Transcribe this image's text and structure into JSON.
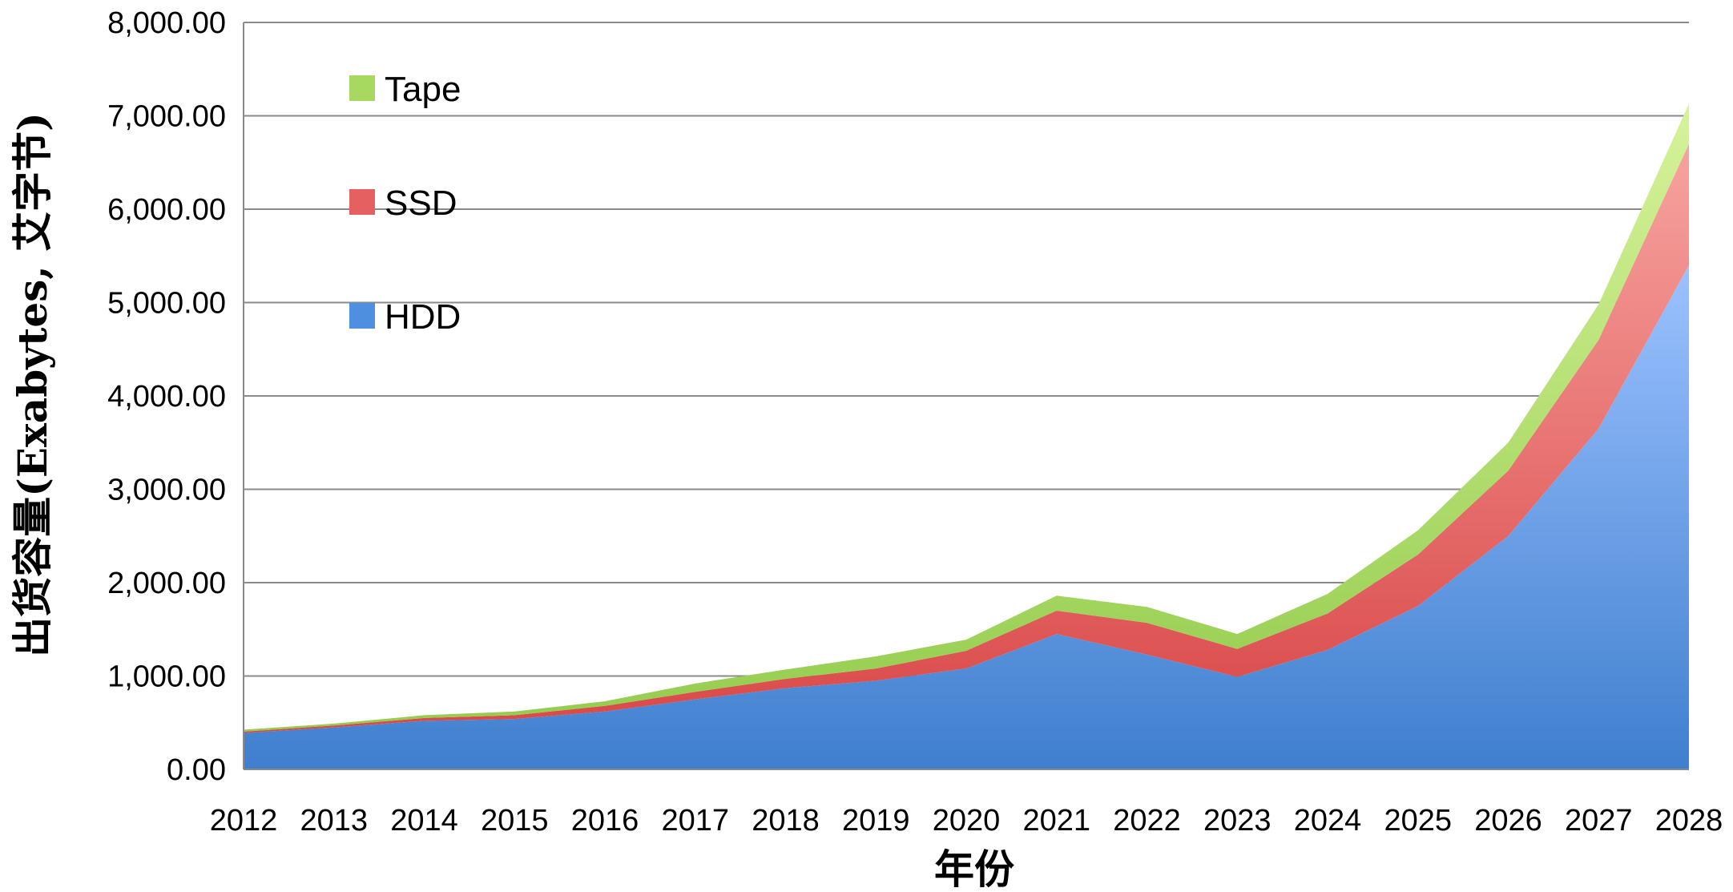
{
  "chart_data": {
    "type": "area",
    "stacked": true,
    "title": "",
    "xlabel": "年份",
    "ylabel": "出货容量(Exabytes, 艾字节)",
    "ylim": [
      0,
      8000
    ],
    "ytick_values": [
      0,
      1000,
      2000,
      3000,
      4000,
      5000,
      6000,
      7000,
      8000
    ],
    "ytick_labels": [
      "0.00",
      "1,000.00",
      "2,000.00",
      "3,000.00",
      "4,000.00",
      "5,000.00",
      "6,000.00",
      "7,000.00",
      "8,000.00"
    ],
    "grid": true,
    "legend_position": "top-left",
    "categories": [
      "2012",
      "2013",
      "2014",
      "2015",
      "2016",
      "2017",
      "2018",
      "2019",
      "2020",
      "2021",
      "2022",
      "2023",
      "2024",
      "2025",
      "2026",
      "2027",
      "2028"
    ],
    "series": [
      {
        "name": "HDD",
        "color_top": "#9cc2ff",
        "color_bottom": "#3f7fce",
        "legend_color": "#4f8fdf",
        "values": [
          390,
          450,
          520,
          540,
          620,
          750,
          870,
          950,
          1080,
          1450,
          1230,
          990,
          1280,
          1750,
          2500,
          3650,
          5400
        ]
      },
      {
        "name": "SSD",
        "color_top": "#f7a3a0",
        "color_bottom": "#d94848",
        "legend_color": "#e56060",
        "values": [
          15,
          20,
          30,
          40,
          60,
          80,
          100,
          130,
          190,
          250,
          340,
          300,
          390,
          550,
          700,
          950,
          1300
        ]
      },
      {
        "name": "Tape",
        "color_top": "#d6f39a",
        "color_bottom": "#94cc4e",
        "legend_color": "#a8d860",
        "values": [
          20,
          20,
          30,
          40,
          50,
          90,
          100,
          130,
          120,
          160,
          170,
          160,
          210,
          260,
          300,
          380,
          430
        ]
      }
    ]
  }
}
